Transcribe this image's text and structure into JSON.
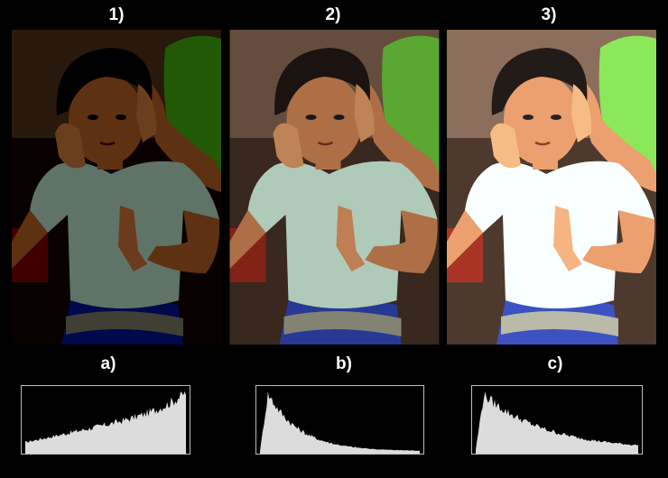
{
  "panels": [
    {
      "label": "1)",
      "tone": "dark"
    },
    {
      "label": "2)",
      "tone": "normal"
    },
    {
      "label": "3)",
      "tone": "bright"
    }
  ],
  "histograms": [
    {
      "label": "a)",
      "distribution": "skewed-to-highlights"
    },
    {
      "label": "b)",
      "distribution": "skewed-to-shadows"
    },
    {
      "label": "c)",
      "distribution": "skewed-to-shadows-midtones"
    }
  ],
  "colors": {
    "background": "#000000",
    "label": "#ffffff",
    "histogram_fill": "#dcdcdc",
    "histogram_border": "#bdbdbd",
    "shirt": "#b9d5c3",
    "green_dress": "#5fb034",
    "skirt_blue": "#2a3c9c",
    "skin": "#b7754a"
  }
}
